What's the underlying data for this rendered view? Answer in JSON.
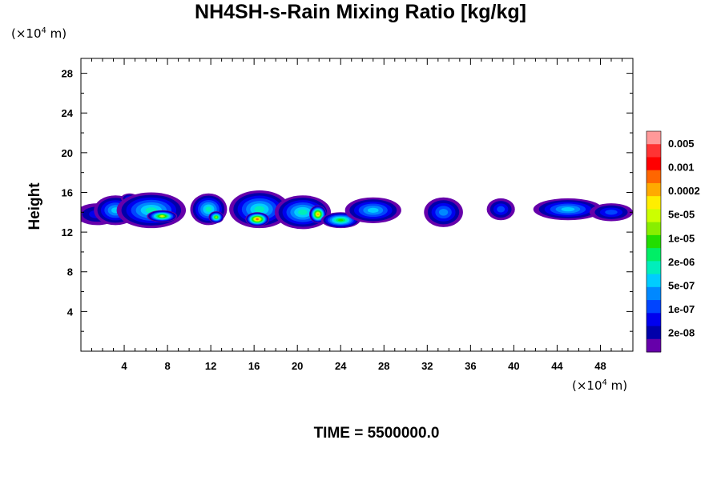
{
  "title": "NH4SH-s-Rain Mixing Ratio [kg/kg]",
  "y_unit": "(×10",
  "y_unit_exp": "4",
  "y_unit_tail": " m)",
  "x_unit": "(×10",
  "x_unit_exp": "4",
  "x_unit_tail": " m)",
  "time_label": "TIME = 5500000.0",
  "chart_data": {
    "type": "heatmap",
    "title": "NH4SH-s-Rain Mixing Ratio [kg/kg]",
    "ylabel": "Height",
    "xlabel": "",
    "xlim": [
      0,
      51
    ],
    "ylim": [
      0,
      29.5
    ],
    "x_ticks": [
      4,
      8,
      12,
      16,
      20,
      24,
      28,
      32,
      36,
      40,
      44,
      48
    ],
    "y_ticks": [
      4,
      8,
      12,
      16,
      20,
      24,
      28
    ],
    "grid": false,
    "colorbar": {
      "labels": [
        "0.005",
        "0.001",
        "0.0002",
        "5e-05",
        "1e-05",
        "2e-06",
        "5e-07",
        "1e-07",
        "2e-08"
      ],
      "colors": [
        "#ff9999",
        "#ff3333",
        "#ff0000",
        "#ff6600",
        "#ffaa00",
        "#ffee00",
        "#ccff00",
        "#88ee00",
        "#22dd00",
        "#00ee66",
        "#00eebb",
        "#00ccff",
        "#0088ff",
        "#0044ff",
        "#0000ee",
        "#0000aa",
        "#6600aa"
      ]
    },
    "cells": [
      {
        "x": 1.5,
        "y": 13.8,
        "rx": 2.0,
        "ry": 1.1,
        "level": 2
      },
      {
        "x": 3.2,
        "y": 14.2,
        "rx": 2.0,
        "ry": 1.5,
        "level": 5
      },
      {
        "x": 4.5,
        "y": 15.4,
        "rx": 0.8,
        "ry": 0.5,
        "level": 3
      },
      {
        "x": 6.5,
        "y": 14.2,
        "rx": 3.2,
        "ry": 1.8,
        "level": 6
      },
      {
        "x": 7.5,
        "y": 13.6,
        "rx": 1.4,
        "ry": 0.6,
        "level": 10
      },
      {
        "x": 11.8,
        "y": 14.3,
        "rx": 1.7,
        "ry": 1.6,
        "level": 6
      },
      {
        "x": 12.5,
        "y": 13.5,
        "rx": 0.7,
        "ry": 0.6,
        "level": 9
      },
      {
        "x": 16.5,
        "y": 14.3,
        "rx": 2.8,
        "ry": 1.9,
        "level": 6
      },
      {
        "x": 16.3,
        "y": 13.3,
        "rx": 1.1,
        "ry": 0.7,
        "level": 13
      },
      {
        "x": 20.5,
        "y": 14.0,
        "rx": 2.6,
        "ry": 1.7,
        "level": 6
      },
      {
        "x": 21.9,
        "y": 13.8,
        "rx": 0.8,
        "ry": 0.9,
        "level": 12
      },
      {
        "x": 24.0,
        "y": 13.2,
        "rx": 1.8,
        "ry": 0.8,
        "level": 8
      },
      {
        "x": 27.0,
        "y": 14.2,
        "rx": 2.6,
        "ry": 1.3,
        "level": 5
      },
      {
        "x": 33.5,
        "y": 14.0,
        "rx": 1.8,
        "ry": 1.5,
        "level": 4
      },
      {
        "x": 38.8,
        "y": 14.3,
        "rx": 1.3,
        "ry": 1.1,
        "level": 3
      },
      {
        "x": 45.0,
        "y": 14.3,
        "rx": 3.2,
        "ry": 1.1,
        "level": 5
      },
      {
        "x": 49.0,
        "y": 14.0,
        "rx": 2.0,
        "ry": 0.9,
        "level": 3
      }
    ]
  }
}
